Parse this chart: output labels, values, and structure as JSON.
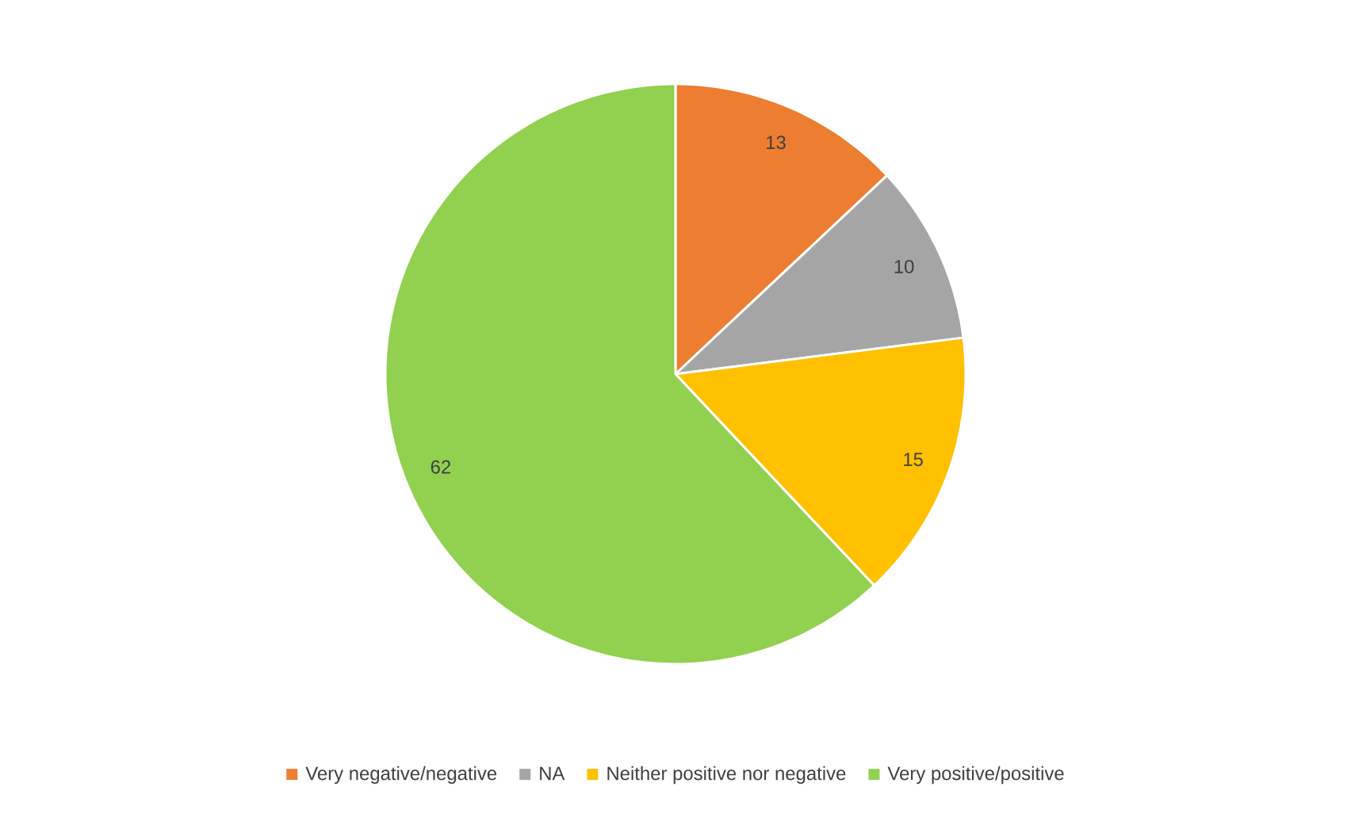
{
  "chart_data": {
    "type": "pie",
    "categories": [
      "Very negative/negative",
      "NA",
      "Neither positive nor negative",
      "Very positive/positive"
    ],
    "values": [
      13,
      10,
      15,
      62
    ],
    "colors": [
      "#ed7d31",
      "#a5a5a5",
      "#ffc000",
      "#92d050"
    ],
    "data_labels": true,
    "legend": "bottom"
  }
}
